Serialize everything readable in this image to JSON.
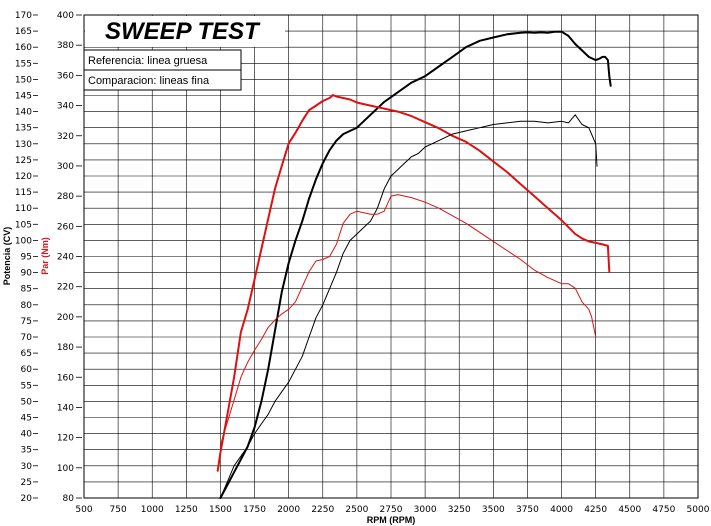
{
  "chart_data": {
    "type": "line",
    "title": "SWEEP TEST",
    "xlabel": "RPM (RPM)",
    "ylabel_left": "Potencia (CV)",
    "ylabel_right": "Par (Nm)",
    "legend": [
      "Referencia: linea gruesa",
      "Comparacion: lineas fina"
    ],
    "xlim": [
      500,
      5000
    ],
    "x_ticks": [
      "500",
      "750",
      "1000",
      "1250",
      "1500",
      "1750",
      "2000",
      "2250",
      "2500",
      "2750",
      "3000",
      "3250",
      "3500",
      "3750",
      "4000",
      "4250",
      "4500",
      "4750",
      "5000"
    ],
    "power_ylim": [
      20,
      170
    ],
    "power_ticks": [
      "20",
      "25",
      "30",
      "35",
      "40",
      "45",
      "50",
      "55",
      "60",
      "65",
      "70",
      "75",
      "80",
      "85",
      "90",
      "95",
      "100",
      "105",
      "110",
      "115",
      "120",
      "125",
      "130",
      "135",
      "140",
      "145",
      "150",
      "155",
      "160",
      "165",
      "170"
    ],
    "torque_ylim": [
      80,
      400
    ],
    "torque_ticks": [
      "80",
      "100",
      "120",
      "140",
      "160",
      "180",
      "200",
      "220",
      "240",
      "260",
      "280",
      "300",
      "320",
      "340",
      "360",
      "380",
      "400"
    ],
    "grid": true,
    "series": [
      {
        "axis": "power",
        "color": "#000000",
        "width": 2.0,
        "x": [
          1500,
          1550,
          1600,
          1650,
          1700,
          1750,
          1800,
          1850,
          1900,
          1950,
          2000,
          2050,
          2100,
          2150,
          2200,
          2250,
          2300,
          2350,
          2400,
          2450,
          2500,
          2600,
          2700,
          2800,
          2900,
          3000,
          3100,
          3200,
          3300,
          3400,
          3500,
          3600,
          3700,
          3750,
          3800,
          3850,
          3900,
          3950,
          4000,
          4050,
          4100,
          4150,
          4200,
          4250,
          4280,
          4300,
          4320,
          4340,
          4350,
          4360
        ],
        "y": [
          20,
          24,
          28,
          32,
          36,
          42,
          50,
          60,
          72,
          84,
          93,
          100,
          106,
          113,
          119,
          124,
          128,
          131,
          133,
          134,
          135,
          139,
          143,
          146,
          149,
          151,
          154,
          157,
          160,
          162,
          163,
          164,
          164.5,
          164.6,
          164.5,
          164.6,
          164.5,
          164.8,
          164.8,
          163.5,
          161,
          159,
          157,
          156,
          156.5,
          157,
          157,
          156,
          151,
          148
        ]
      },
      {
        "axis": "torque",
        "color": "#dd1111",
        "width": 2.0,
        "x": [
          1480,
          1500,
          1550,
          1600,
          1650,
          1700,
          1750,
          1800,
          1850,
          1900,
          1950,
          2000,
          2050,
          2100,
          2150,
          2200,
          2250,
          2300,
          2325,
          2350,
          2400,
          2450,
          2500,
          2550,
          2600,
          2700,
          2800,
          2900,
          3000,
          3100,
          3200,
          3300,
          3400,
          3500,
          3600,
          3700,
          3800,
          3900,
          4000,
          4100,
          4150,
          4200,
          4250,
          4300,
          4340,
          4350
        ],
        "y": [
          98,
          110,
          135,
          160,
          190,
          205,
          225,
          245,
          265,
          285,
          300,
          315,
          322,
          330,
          337,
          340,
          343,
          345,
          347,
          346,
          345,
          344,
          342,
          341,
          340,
          338,
          336,
          333,
          329,
          325,
          320,
          316,
          310,
          303,
          296,
          288,
          280,
          272,
          264,
          255,
          252,
          250,
          249,
          248,
          247,
          230
        ]
      },
      {
        "axis": "power",
        "color": "#000000",
        "width": 1.0,
        "x": [
          1500,
          1550,
          1600,
          1650,
          1700,
          1750,
          1800,
          1850,
          1900,
          1950,
          2000,
          2050,
          2100,
          2150,
          2200,
          2250,
          2300,
          2350,
          2400,
          2450,
          2500,
          2550,
          2600,
          2650,
          2700,
          2750,
          2800,
          2850,
          2900,
          2950,
          3000,
          3100,
          3200,
          3300,
          3400,
          3500,
          3600,
          3700,
          3800,
          3900,
          4000,
          4050,
          4100,
          4150,
          4200,
          4250,
          4260
        ],
        "y": [
          20,
          25,
          30,
          33,
          36,
          40,
          43,
          46,
          50,
          53,
          56,
          60,
          64,
          70,
          76,
          80,
          85,
          90,
          96,
          100,
          102,
          104,
          106,
          110,
          116,
          120,
          122,
          124,
          126,
          127,
          129,
          131,
          133,
          134,
          135,
          136,
          136.5,
          137,
          137,
          136.5,
          137,
          136.5,
          139,
          136,
          135,
          130,
          123
        ]
      },
      {
        "axis": "torque",
        "color": "#dd1111",
        "width": 1.0,
        "x": [
          1500,
          1550,
          1600,
          1650,
          1700,
          1750,
          1800,
          1850,
          1900,
          1950,
          2000,
          2050,
          2100,
          2150,
          2200,
          2250,
          2300,
          2350,
          2400,
          2450,
          2500,
          2550,
          2600,
          2650,
          2700,
          2750,
          2800,
          2900,
          3000,
          3100,
          3200,
          3300,
          3400,
          3500,
          3600,
          3700,
          3800,
          3900,
          4000,
          4050,
          4100,
          4150,
          4200,
          4220,
          4250
        ],
        "y": [
          115,
          130,
          145,
          160,
          170,
          178,
          185,
          193,
          198,
          202,
          205,
          210,
          220,
          230,
          237,
          238,
          240,
          248,
          262,
          268,
          270,
          269,
          268,
          268,
          270,
          280,
          281,
          279,
          276,
          272,
          267,
          262,
          256,
          250,
          244,
          238,
          231,
          226,
          222,
          222,
          219,
          210,
          205,
          200,
          187
        ]
      }
    ]
  }
}
